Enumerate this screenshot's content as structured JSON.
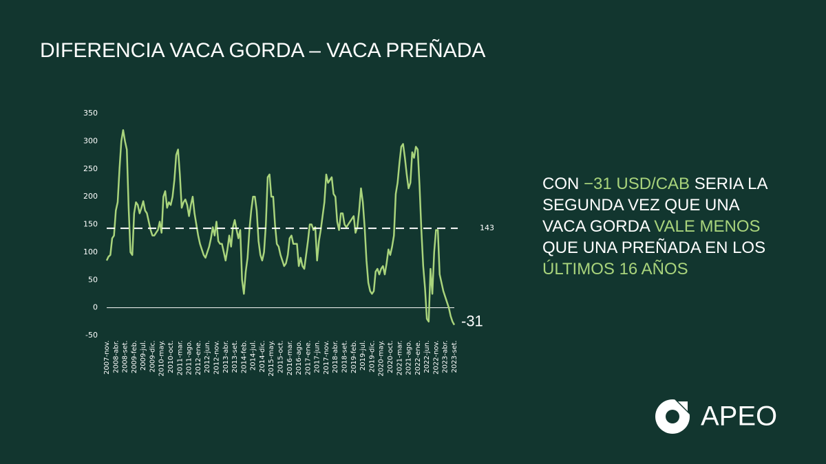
{
  "chart_data": {
    "type": "line",
    "title": "DIFERENCIA VACA GORDA – VACA PREÑADA",
    "categories": [
      "2007-nov.",
      null,
      null,
      null,
      null,
      "2008-abr.",
      null,
      null,
      null,
      null,
      "2008-set.",
      null,
      null,
      null,
      null,
      "2009-feb.",
      null,
      null,
      null,
      null,
      "2009-jul.",
      null,
      null,
      null,
      null,
      "2009-dic.",
      null,
      null,
      null,
      null,
      "2010-may.",
      null,
      null,
      null,
      null,
      "2010-oct.",
      null,
      null,
      null,
      null,
      "2011-mar.",
      null,
      null,
      null,
      null,
      "2011-ago.",
      null,
      null,
      null,
      null,
      "2012-ene.",
      null,
      null,
      null,
      null,
      "2012-jun.",
      null,
      null,
      null,
      null,
      "2012-nov.",
      null,
      null,
      null,
      null,
      "2013-abr.",
      null,
      null,
      null,
      null,
      "2013-set.",
      null,
      null,
      null,
      null,
      "2014-feb.",
      null,
      null,
      null,
      null,
      "2014-jul.",
      null,
      null,
      null,
      null,
      "2014-dic.",
      null,
      null,
      null,
      null,
      "2015-may.",
      null,
      null,
      null,
      null,
      "2015-oct.",
      null,
      null,
      null,
      null,
      "2016-mar.",
      null,
      null,
      null,
      null,
      "2016-ago.",
      null,
      null,
      null,
      null,
      "2017-ene.",
      null,
      null,
      null,
      null,
      "2017-jun.",
      null,
      null,
      null,
      null,
      "2017-nov.",
      null,
      null,
      null,
      null,
      "2018-abr.",
      null,
      null,
      null,
      null,
      "2018-set.",
      null,
      null,
      null,
      null,
      "2019-feb.",
      null,
      null,
      null,
      null,
      "2019-jul.",
      null,
      null,
      null,
      null,
      "2019-dic.",
      null,
      null,
      null,
      null,
      "2020-may.",
      null,
      null,
      null,
      null,
      "2020-oct.",
      null,
      null,
      null,
      null,
      "2021-mar.",
      null,
      null,
      null,
      null,
      "2021-ago.",
      null,
      null,
      null,
      null,
      "2022-ene.",
      null,
      null,
      null,
      null,
      "2022-jun.",
      null,
      null,
      null,
      null,
      "2022-nov.",
      null,
      null,
      null,
      null,
      "2023-abr.",
      null,
      null,
      null,
      null,
      "2023-set."
    ],
    "values": [
      85,
      92,
      95,
      125,
      130,
      175,
      190,
      250,
      300,
      320,
      300,
      285,
      180,
      100,
      95,
      170,
      190,
      185,
      170,
      180,
      192,
      175,
      170,
      155,
      140,
      130,
      130,
      135,
      140,
      155,
      135,
      200,
      210,
      180,
      190,
      185,
      200,
      230,
      275,
      285,
      240,
      180,
      190,
      195,
      185,
      165,
      185,
      200,
      170,
      150,
      130,
      115,
      105,
      95,
      90,
      100,
      110,
      125,
      145,
      130,
      155,
      120,
      115,
      115,
      100,
      85,
      105,
      130,
      110,
      145,
      158,
      140,
      125,
      140,
      50,
      25,
      65,
      90,
      140,
      175,
      200,
      200,
      175,
      120,
      95,
      85,
      100,
      150,
      235,
      240,
      200,
      200,
      150,
      115,
      110,
      95,
      85,
      75,
      80,
      95,
      125,
      130,
      115,
      115,
      115,
      75,
      90,
      75,
      70,
      95,
      120,
      150,
      150,
      140,
      145,
      85,
      120,
      140,
      165,
      190,
      240,
      225,
      230,
      235,
      205,
      200,
      155,
      140,
      170,
      170,
      150,
      145,
      150,
      155,
      160,
      165,
      135,
      145,
      175,
      215,
      190,
      145,
      85,
      45,
      30,
      25,
      30,
      65,
      70,
      60,
      70,
      75,
      60,
      80,
      105,
      95,
      110,
      130,
      205,
      225,
      260,
      290,
      295,
      270,
      240,
      215,
      225,
      280,
      270,
      290,
      285,
      220,
      140,
      75,
      35,
      -20,
      -25,
      70,
      25,
      100,
      140,
      140,
      60,
      45,
      30,
      20,
      10,
      0,
      -15,
      -25,
      -31
    ],
    "color": "#a9d47c",
    "ylim": [
      -50,
      350
    ],
    "yticks": [
      -50,
      0,
      50,
      100,
      150,
      200,
      250,
      300,
      350
    ],
    "reference_line": {
      "value": 143,
      "label": "143",
      "color": "#ffffff"
    },
    "statement": [
      {
        "text": "CON ",
        "highlight": false
      },
      {
        "text": "−31 USD/CAB",
        "highlight": true
      },
      {
        "text": " SERIA LA SEGUNDA VEZ QUE UNA VACA GORDA ",
        "highlight": false
      },
      {
        "text": "VALE MENOS",
        "highlight": true
      },
      {
        "text": " QUE UNA PREÑADA EN LOS ",
        "highlight": false
      },
      {
        "text": "ÚLTIMOS 16 AÑOS",
        "highlight": true
      }
    ],
    "logo": "APEO"
  }
}
